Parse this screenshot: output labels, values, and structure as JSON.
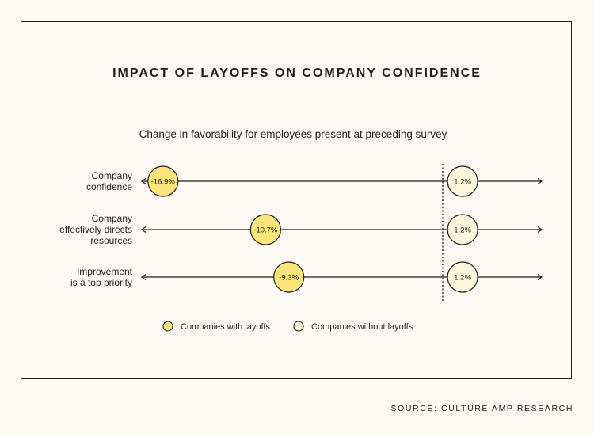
{
  "chart_data": {
    "type": "dot",
    "title": "IMPACT OF LAYOFFS ON COMPANY CONFIDENCE",
    "subtitle": "Change in favorability for employees present at preceding survey",
    "categories": [
      [
        "Company",
        "confidence"
      ],
      [
        "Company",
        "effectively directs",
        "resources"
      ],
      [
        "Improvement",
        "is a top priority"
      ]
    ],
    "series": [
      {
        "name": "Companies with layoffs",
        "color": "#fde47a",
        "values": [
          -16.9,
          -10.7,
          -9.3
        ],
        "labels": [
          "-16.9%",
          "-10.7%",
          "-9.3%"
        ]
      },
      {
        "name": "Companies without layoffs",
        "color": "#fdf6dc",
        "values": [
          1.2,
          1.2,
          1.2
        ],
        "labels": [
          "1.2%",
          "1.2%",
          "1.2%"
        ]
      }
    ],
    "reference_line": 0,
    "legend": "bottom",
    "grid": false
  },
  "source": "SOURCE: CULTURE AMP RESEARCH"
}
